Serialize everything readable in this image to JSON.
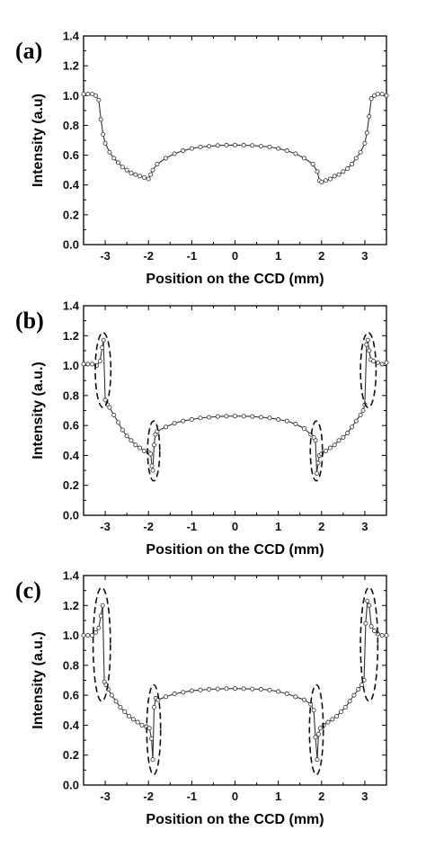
{
  "chart_data": [
    {
      "type": "line",
      "panel_label": "(a)",
      "xlabel": "Position on the CCD (mm)",
      "ylabel": "Intensity (a.u)",
      "xlim": [
        -3.5,
        3.5
      ],
      "ylim": [
        0.0,
        1.4
      ],
      "xticks": [
        -3,
        -2,
        -1,
        0,
        1,
        2,
        3
      ],
      "yticks": [
        0.0,
        0.2,
        0.4,
        0.6,
        0.8,
        1.0,
        1.2,
        1.4
      ],
      "ytick_labels": [
        "0.0",
        "0.2",
        "0.4",
        "0.6",
        "0.8",
        "1.0",
        "1.2",
        "1.4"
      ],
      "grid": false,
      "series": [
        {
          "x": [
            -3.5,
            -3.4,
            -3.3,
            -3.22,
            -3.15,
            -3.1,
            -3.05,
            -3.0,
            -2.9,
            -2.8,
            -2.7,
            -2.6,
            -2.5,
            -2.4,
            -2.3,
            -2.2,
            -2.1,
            -2.0,
            -1.95,
            -1.9,
            -1.8,
            -1.6,
            -1.4,
            -1.2,
            -1.0,
            -0.8,
            -0.6,
            -0.4,
            -0.2,
            0.0,
            0.2,
            0.4,
            0.6,
            0.8,
            1.0,
            1.2,
            1.4,
            1.6,
            1.8,
            1.9,
            1.95,
            2.0,
            2.1,
            2.2,
            2.3,
            2.4,
            2.5,
            2.6,
            2.7,
            2.8,
            2.9,
            3.0,
            3.05,
            3.1,
            3.15,
            3.22,
            3.3,
            3.4,
            3.5
          ],
          "y": [
            1.01,
            1.01,
            1.01,
            1.0,
            0.97,
            0.84,
            0.74,
            0.68,
            0.62,
            0.58,
            0.55,
            0.52,
            0.5,
            0.48,
            0.47,
            0.46,
            0.45,
            0.44,
            0.47,
            0.5,
            0.54,
            0.58,
            0.61,
            0.63,
            0.645,
            0.655,
            0.66,
            0.665,
            0.667,
            0.668,
            0.667,
            0.665,
            0.66,
            0.655,
            0.645,
            0.63,
            0.61,
            0.58,
            0.54,
            0.49,
            0.43,
            0.42,
            0.43,
            0.44,
            0.46,
            0.47,
            0.49,
            0.51,
            0.54,
            0.58,
            0.62,
            0.68,
            0.75,
            0.86,
            0.98,
            1.0,
            1.01,
            1.01,
            1.0
          ]
        }
      ]
    },
    {
      "type": "line",
      "panel_label": "(b)",
      "xlabel": "Position on the CCD (mm)",
      "ylabel": "Intensity (a.u.)",
      "xlim": [
        -3.5,
        3.5
      ],
      "ylim": [
        0.0,
        1.4
      ],
      "xticks": [
        -3,
        -2,
        -1,
        0,
        1,
        2,
        3
      ],
      "yticks": [
        0.0,
        0.2,
        0.4,
        0.6,
        0.8,
        1.0,
        1.2,
        1.4
      ],
      "ytick_labels": [
        "0.0",
        "0.2",
        "0.4",
        "0.6",
        "0.8",
        "1.0",
        "1.2",
        "1.4"
      ],
      "grid": false,
      "highlighted_regions": [
        {
          "x_center": -3.05,
          "y_center": 0.97,
          "x_halfwidth": 0.18,
          "y_halfwidth": 0.25
        },
        {
          "x_center": -1.88,
          "y_center": 0.43,
          "x_halfwidth": 0.14,
          "y_halfwidth": 0.2
        },
        {
          "x_center": 1.88,
          "y_center": 0.43,
          "x_halfwidth": 0.14,
          "y_halfwidth": 0.2
        },
        {
          "x_center": 3.08,
          "y_center": 0.97,
          "x_halfwidth": 0.18,
          "y_halfwidth": 0.25
        }
      ],
      "series": [
        {
          "x": [
            -3.5,
            -3.4,
            -3.3,
            -3.2,
            -3.12,
            -3.07,
            -3.04,
            -3.0,
            -2.95,
            -2.9,
            -2.8,
            -2.7,
            -2.6,
            -2.5,
            -2.4,
            -2.3,
            -2.2,
            -2.1,
            -2.0,
            -1.95,
            -1.92,
            -1.9,
            -1.87,
            -1.84,
            -1.8,
            -1.6,
            -1.4,
            -1.2,
            -1.0,
            -0.8,
            -0.6,
            -0.4,
            -0.2,
            0.0,
            0.2,
            0.4,
            0.6,
            0.8,
            1.0,
            1.2,
            1.4,
            1.6,
            1.75,
            1.82,
            1.86,
            1.89,
            1.92,
            1.95,
            2.0,
            2.1,
            2.2,
            2.3,
            2.4,
            2.5,
            2.6,
            2.7,
            2.8,
            2.9,
            2.96,
            3.0,
            3.04,
            3.07,
            3.1,
            3.14,
            3.2,
            3.3,
            3.4,
            3.5
          ],
          "y": [
            1.01,
            1.01,
            1.01,
            1.0,
            1.03,
            1.12,
            1.17,
            0.77,
            0.74,
            0.72,
            0.67,
            0.62,
            0.57,
            0.53,
            0.5,
            0.47,
            0.45,
            0.43,
            0.42,
            0.41,
            0.33,
            0.3,
            0.47,
            0.54,
            0.56,
            0.59,
            0.615,
            0.63,
            0.64,
            0.65,
            0.655,
            0.66,
            0.662,
            0.663,
            0.662,
            0.66,
            0.655,
            0.65,
            0.64,
            0.63,
            0.61,
            0.58,
            0.54,
            0.52,
            0.5,
            0.28,
            0.35,
            0.4,
            0.41,
            0.43,
            0.45,
            0.47,
            0.5,
            0.52,
            0.55,
            0.59,
            0.63,
            0.67,
            0.7,
            0.74,
            1.14,
            1.17,
            1.1,
            1.04,
            1.03,
            1.02,
            1.01,
            1.02
          ]
        }
      ]
    },
    {
      "type": "line",
      "panel_label": "(c)",
      "xlabel": "Position on the CCD (mm)",
      "ylabel": "Intensity (a.u.)",
      "xlim": [
        -3.5,
        3.5
      ],
      "ylim": [
        0.0,
        1.4
      ],
      "xticks": [
        -3,
        -2,
        -1,
        0,
        1,
        2,
        3
      ],
      "yticks": [
        0.0,
        0.2,
        0.4,
        0.6,
        0.8,
        1.0,
        1.2,
        1.4
      ],
      "ytick_labels": [
        "0.0",
        "0.2",
        "0.4",
        "0.6",
        "0.8",
        "1.0",
        "1.2",
        "1.4"
      ],
      "grid": false,
      "highlighted_regions": [
        {
          "x_center": -3.08,
          "y_center": 0.94,
          "x_halfwidth": 0.2,
          "y_halfwidth": 0.38
        },
        {
          "x_center": -1.88,
          "y_center": 0.37,
          "x_halfwidth": 0.16,
          "y_halfwidth": 0.3
        },
        {
          "x_center": 1.88,
          "y_center": 0.37,
          "x_halfwidth": 0.16,
          "y_halfwidth": 0.3
        },
        {
          "x_center": 3.1,
          "y_center": 0.94,
          "x_halfwidth": 0.2,
          "y_halfwidth": 0.38
        }
      ],
      "series": [
        {
          "x": [
            -3.5,
            -3.4,
            -3.3,
            -3.22,
            -3.15,
            -3.1,
            -3.06,
            -3.02,
            -2.98,
            -2.93,
            -2.85,
            -2.75,
            -2.65,
            -2.55,
            -2.45,
            -2.35,
            -2.25,
            -2.15,
            -2.05,
            -1.98,
            -1.93,
            -1.9,
            -1.87,
            -1.83,
            -1.78,
            -1.6,
            -1.4,
            -1.2,
            -1.0,
            -0.8,
            -0.6,
            -0.4,
            -0.2,
            0.0,
            0.2,
            0.4,
            0.6,
            0.8,
            1.0,
            1.2,
            1.4,
            1.6,
            1.75,
            1.82,
            1.86,
            1.9,
            1.93,
            1.97,
            2.05,
            2.15,
            2.25,
            2.35,
            2.45,
            2.55,
            2.65,
            2.75,
            2.85,
            2.93,
            2.98,
            3.02,
            3.06,
            3.1,
            3.15,
            3.22,
            3.3,
            3.4,
            3.5
          ],
          "y": [
            1.0,
            1.0,
            1.0,
            1.02,
            1.05,
            1.13,
            1.2,
            0.69,
            0.67,
            0.64,
            0.6,
            0.56,
            0.52,
            0.49,
            0.46,
            0.44,
            0.42,
            0.4,
            0.39,
            0.38,
            0.31,
            0.17,
            0.52,
            0.58,
            0.57,
            0.59,
            0.61,
            0.62,
            0.63,
            0.635,
            0.64,
            0.642,
            0.644,
            0.645,
            0.644,
            0.642,
            0.64,
            0.635,
            0.625,
            0.61,
            0.59,
            0.57,
            0.54,
            0.5,
            0.32,
            0.17,
            0.34,
            0.38,
            0.4,
            0.42,
            0.44,
            0.46,
            0.49,
            0.52,
            0.56,
            0.6,
            0.64,
            0.67,
            0.7,
            1.08,
            1.23,
            1.2,
            1.06,
            1.03,
            1.01,
            1.0,
            1.0
          ]
        }
      ]
    }
  ]
}
